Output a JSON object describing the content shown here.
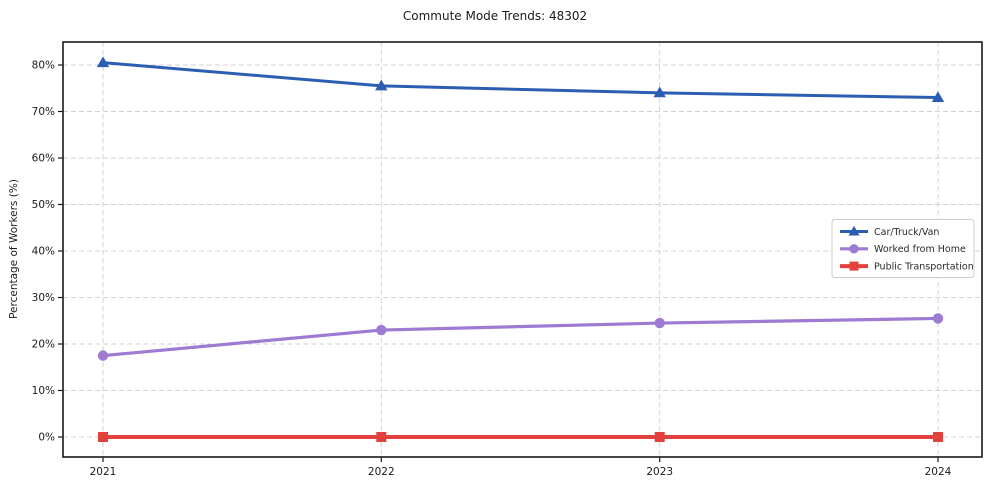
{
  "chart_data": {
    "type": "line",
    "title": "Commute Mode Trends: 48302",
    "xlabel": "",
    "ylabel": "Percentage of Workers (%)",
    "categories": [
      "2021",
      "2022",
      "2023",
      "2024"
    ],
    "y_ticks": [
      0,
      10,
      20,
      30,
      40,
      50,
      60,
      70,
      80
    ],
    "y_tick_suffix": "%",
    "ylim": [
      -4,
      85
    ],
    "grid": true,
    "grid_style": "dashed",
    "legend_position": "center-right",
    "colors": {
      "grid": "#d2d2d2",
      "spine": "#1a1a1a",
      "background": "#ffffff",
      "legend_border": "#cccccc"
    },
    "series": [
      {
        "name": "Car/Truck/Van",
        "marker": "triangle",
        "color": "#2b5eb3",
        "line_width": 3,
        "values": [
          80.5,
          75.5,
          74,
          73
        ]
      },
      {
        "name": "Worked from Home",
        "marker": "circle",
        "color": "#9e7ad3",
        "line_width": 3.2,
        "values": [
          17.5,
          23,
          24.5,
          25.5
        ]
      },
      {
        "name": "Public Transportation",
        "marker": "square",
        "color": "#e2413d",
        "line_width": 4,
        "values": [
          0,
          0,
          0,
          0
        ]
      }
    ]
  }
}
